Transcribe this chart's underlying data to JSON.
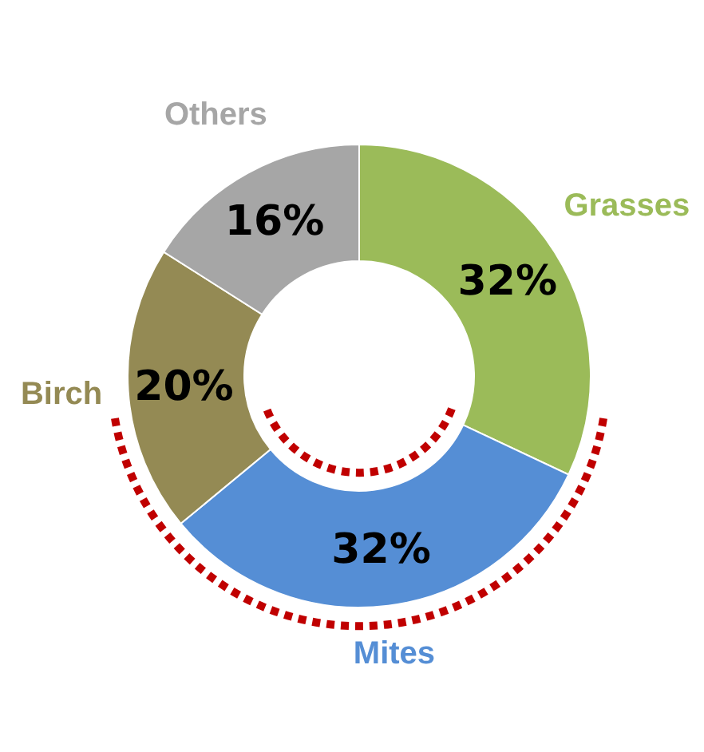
{
  "chart_data": {
    "type": "donut",
    "categories": [
      "Grasses",
      "Mites",
      "Birch",
      "Others"
    ],
    "values": [
      32,
      32,
      20,
      16
    ],
    "colors": [
      "#9bbb59",
      "#558ed5",
      "#948a54",
      "#a6a6a6"
    ],
    "value_labels": [
      "32%",
      "32%",
      "20%",
      "16%"
    ]
  }
}
